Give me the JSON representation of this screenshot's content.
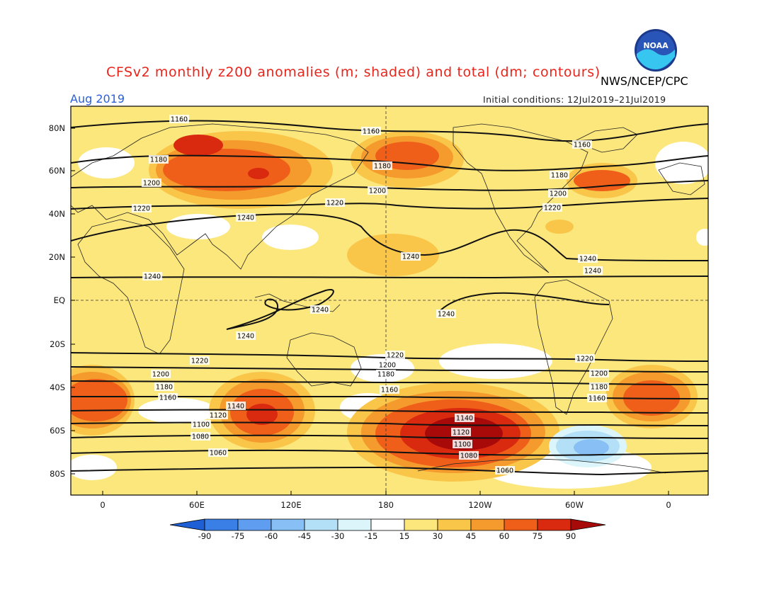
{
  "title": "CFSv2 monthly z200 anomalies (m; shaded) and total (dm; contours)",
  "agency": "NWS/NCEP/CPC",
  "logo_text": "NOAA",
  "valid_month": "Aug 2019",
  "initial_conditions": "Initial conditions: 12Jul2019–21Jul2019",
  "lat_ticks": [
    "80N",
    "60N",
    "40N",
    "20N",
    "EQ",
    "20S",
    "40S",
    "60S",
    "80S"
  ],
  "lon_ticks": [
    "0",
    "60E",
    "120E",
    "180",
    "120W",
    "60W",
    "0"
  ],
  "colorbar": {
    "levels": [
      "-90",
      "-75",
      "-60",
      "-45",
      "-30",
      "-15",
      "15",
      "30",
      "45",
      "60",
      "75",
      "90"
    ],
    "colors": [
      "#1e5fd6",
      "#3a7fe6",
      "#5e9df0",
      "#88c0f5",
      "#b4e0f7",
      "#dcf5fa",
      "#ffffff",
      "#fce77d",
      "#f9c649",
      "#f59a2d",
      "#ef5f1a",
      "#d92a10",
      "#a80a0a"
    ]
  },
  "contour_labels": [
    "1060",
    "1080",
    "1100",
    "1120",
    "1140",
    "1160",
    "1180",
    "1200",
    "1220",
    "1240"
  ],
  "land_color": "#fce77d"
}
